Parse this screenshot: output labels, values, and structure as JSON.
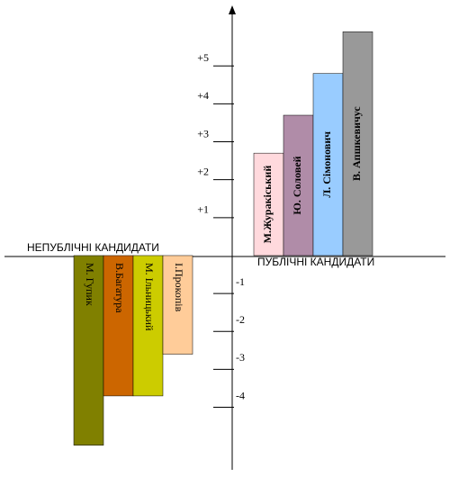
{
  "chart_data": {
    "type": "bar",
    "categories": [
      "М. Гупик",
      "В.Багатура",
      "М. Ільницький",
      "І.Прокопів",
      "М.Журакіський",
      "Ю. Соловей",
      "Л. Сімонович",
      "В. Апшкевичус"
    ],
    "values": [
      -5.0,
      -3.7,
      -3.7,
      -2.6,
      2.7,
      3.7,
      4.8,
      5.9
    ],
    "colors": [
      "#808000",
      "#cc6600",
      "#cccc00",
      "#ffcc99",
      "#ffd9dd",
      "#b08ca8",
      "#99ccff",
      "#999999"
    ],
    "x_label_left": "НЕПУБЛІЧНІ КАНДИДАТИ",
    "x_label_right": "ПУБЛІЧНІ КАНДИДАТИ",
    "ylim": [
      -5.6,
      6.5
    ],
    "yticks": [
      -4,
      -3,
      -2,
      -1,
      {
        "value": 1,
        "label": "+1"
      },
      {
        "value": 2,
        "label": "+2"
      },
      {
        "value": 3,
        "label": "+3"
      },
      {
        "value": 4,
        "label": "+4"
      },
      {
        "value": 5,
        "label": "+5"
      }
    ]
  }
}
